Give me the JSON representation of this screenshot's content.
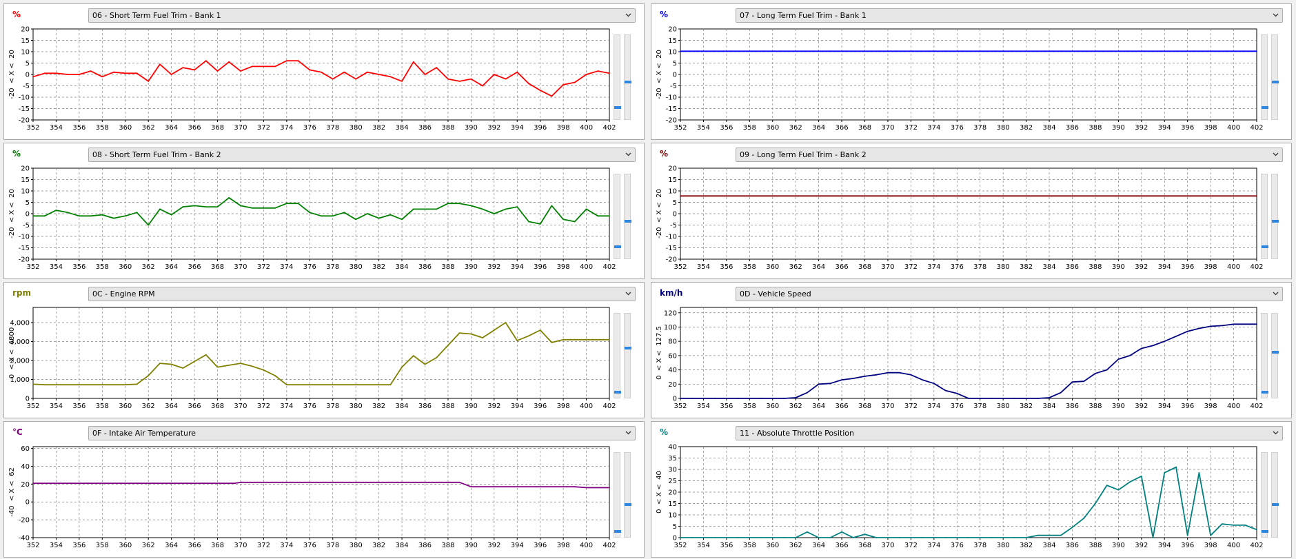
{
  "chart_data": [
    {
      "type": "line",
      "unit": "%",
      "title": "06 - Short Term Fuel Trim - Bank 1",
      "range_label": "-20  < X <  20",
      "color": "#ff0000",
      "ylim": [
        -20,
        20
      ],
      "yticks": [
        20,
        15,
        10,
        5,
        0,
        -5,
        -10,
        -15,
        -20
      ],
      "ytick_labels": [
        "20",
        "15",
        "10",
        "5",
        "0",
        "-5",
        "-10",
        "-15",
        "-20"
      ],
      "xlim": [
        352,
        402
      ],
      "xticks": [
        352,
        354,
        356,
        358,
        360,
        362,
        364,
        366,
        368,
        370,
        372,
        374,
        376,
        378,
        380,
        382,
        384,
        386,
        388,
        390,
        392,
        394,
        396,
        398,
        400,
        402
      ],
      "x": [
        352,
        353,
        354,
        355,
        356,
        357,
        358,
        359,
        360,
        361,
        362,
        363,
        364,
        365,
        366,
        367,
        368,
        369,
        370,
        371,
        372,
        373,
        374,
        375,
        376,
        377,
        378,
        379,
        380,
        381,
        382,
        383,
        384,
        385,
        386,
        387,
        388,
        389,
        390,
        391,
        392,
        393,
        394,
        395,
        396,
        397,
        398,
        399,
        400,
        401,
        402
      ],
      "y": [
        -1,
        0.5,
        0.5,
        0,
        0,
        1.5,
        -1,
        1,
        0.5,
        0.5,
        -3,
        4.5,
        0,
        3,
        2,
        6,
        1.5,
        5.5,
        1.5,
        3.5,
        3.5,
        3.5,
        6,
        6,
        2,
        1,
        -2,
        1,
        -2,
        1,
        0,
        -1,
        -3,
        5.5,
        0,
        3,
        -2,
        -3,
        -2,
        -5,
        0,
        -2,
        1,
        -4,
        -7,
        -9.5,
        -4.5,
        -3.5,
        0,
        1.5,
        0.5
      ],
      "scroll": [
        0.56,
        0.87
      ]
    },
    {
      "type": "line",
      "unit": "%",
      "title": "07 - Long Term Fuel Trim - Bank 1",
      "range_label": "-20  < X <  20",
      "color": "#0000ff",
      "ylim": [
        -20,
        20
      ],
      "yticks": [
        20,
        15,
        10,
        5,
        0,
        -5,
        -10,
        -15,
        -20
      ],
      "ytick_labels": [
        "20",
        "15",
        "10",
        "5",
        "0",
        "-5",
        "-10",
        "-15",
        "-20"
      ],
      "xlim": [
        352,
        402
      ],
      "xticks": [
        352,
        354,
        356,
        358,
        360,
        362,
        364,
        366,
        368,
        370,
        372,
        374,
        376,
        378,
        380,
        382,
        384,
        386,
        388,
        390,
        392,
        394,
        396,
        398,
        400,
        402
      ],
      "x": [
        352,
        402
      ],
      "y": [
        10.2,
        10.2
      ],
      "scroll": [
        0.56,
        0.87
      ]
    },
    {
      "type": "line",
      "unit": "%",
      "title": "08 - Short Term Fuel Trim - Bank 2",
      "range_label": "-20  < X <  20",
      "color": "#008000",
      "ylim": [
        -20,
        20
      ],
      "yticks": [
        20,
        15,
        10,
        5,
        0,
        -5,
        -10,
        -15,
        -20
      ],
      "ytick_labels": [
        "20",
        "15",
        "10",
        "5",
        "0",
        "-5",
        "-10",
        "-15",
        "-20"
      ],
      "xlim": [
        352,
        402
      ],
      "xticks": [
        352,
        354,
        356,
        358,
        360,
        362,
        364,
        366,
        368,
        370,
        372,
        374,
        376,
        378,
        380,
        382,
        384,
        386,
        388,
        390,
        392,
        394,
        396,
        398,
        400,
        402
      ],
      "x": [
        352,
        353,
        354,
        355,
        356,
        357,
        358,
        359,
        360,
        361,
        362,
        363,
        364,
        365,
        366,
        367,
        368,
        369,
        370,
        371,
        372,
        373,
        374,
        375,
        376,
        377,
        378,
        379,
        380,
        381,
        382,
        383,
        384,
        385,
        386,
        387,
        388,
        389,
        390,
        391,
        392,
        393,
        394,
        395,
        396,
        397,
        398,
        399,
        400,
        401,
        402
      ],
      "y": [
        -1,
        -1,
        1.5,
        0.5,
        -1,
        -1,
        -0.5,
        -2,
        -1,
        0.5,
        -5,
        2,
        -0.5,
        3,
        3.5,
        3,
        3,
        7,
        3.5,
        2.5,
        2.5,
        2.5,
        4.5,
        4.5,
        0.5,
        -1,
        -1,
        0.5,
        -2.5,
        0,
        -2,
        -0.5,
        -2.5,
        2,
        2,
        2,
        4.5,
        4.5,
        3.5,
        2,
        0,
        2,
        3,
        -3.5,
        -4.5,
        3.5,
        -2.5,
        -3.5,
        2,
        -1,
        -1
      ],
      "scroll": [
        0.56,
        0.87
      ]
    },
    {
      "type": "line",
      "unit": "%",
      "title": "09 - Long Term Fuel Trim - Bank 2",
      "range_label": "-20  < X <  20",
      "color": "#800000",
      "ylim": [
        -20,
        20
      ],
      "yticks": [
        20,
        15,
        10,
        5,
        0,
        -5,
        -10,
        -15,
        -20
      ],
      "ytick_labels": [
        "20",
        "15",
        "10",
        "5",
        "0",
        "-5",
        "-10",
        "-15",
        "-20"
      ],
      "xlim": [
        352,
        402
      ],
      "xticks": [
        352,
        354,
        356,
        358,
        360,
        362,
        364,
        366,
        368,
        370,
        372,
        374,
        376,
        378,
        380,
        382,
        384,
        386,
        388,
        390,
        392,
        394,
        396,
        398,
        400,
        402
      ],
      "x": [
        352,
        402
      ],
      "y": [
        7.8,
        7.8
      ],
      "scroll": [
        0.56,
        0.87
      ]
    },
    {
      "type": "line",
      "unit": "rpm",
      "title": "0C - Engine RPM",
      "range_label": "0  < X <  4800",
      "color": "#808000",
      "ylim": [
        0,
        4800
      ],
      "yticks": [
        4000,
        3000,
        2000,
        1000,
        0
      ],
      "ytick_labels": [
        "4,000",
        "3,000",
        "2,000",
        "1,000",
        "0"
      ],
      "xlim": [
        352,
        402
      ],
      "xticks": [
        352,
        354,
        356,
        358,
        360,
        362,
        364,
        366,
        368,
        370,
        372,
        374,
        376,
        378,
        380,
        382,
        384,
        386,
        388,
        390,
        392,
        394,
        396,
        398,
        400,
        402
      ],
      "x": [
        352,
        353,
        354,
        355,
        356,
        357,
        358,
        359,
        360,
        361,
        362,
        363,
        364,
        365,
        366,
        367,
        368,
        369,
        370,
        371,
        372,
        373,
        374,
        375,
        376,
        377,
        378,
        379,
        380,
        381,
        382,
        383,
        384,
        385,
        386,
        387,
        388,
        389,
        390,
        391,
        392,
        393,
        394,
        395,
        396,
        397,
        398,
        399,
        400,
        401,
        402
      ],
      "y": [
        750,
        720,
        720,
        720,
        720,
        720,
        720,
        720,
        720,
        750,
        1200,
        1850,
        1800,
        1600,
        1950,
        2300,
        1650,
        1750,
        1850,
        1700,
        1500,
        1200,
        720,
        720,
        720,
        720,
        720,
        720,
        720,
        720,
        720,
        720,
        1650,
        2250,
        1800,
        2150,
        2800,
        3450,
        3400,
        3200,
        3600,
        4000,
        3050,
        3300,
        3600,
        2950,
        3100,
        3100,
        3100,
        3100,
        3100
      ],
      "scroll": [
        0.41,
        0.95
      ]
    },
    {
      "type": "line",
      "unit": "km/h",
      "title": "0D - Vehicle Speed",
      "range_label": "0  < X <  127.5",
      "color": "#000080",
      "ylim": [
        0,
        127.5
      ],
      "yticks": [
        120,
        100,
        80,
        60,
        40,
        20,
        0
      ],
      "ytick_labels": [
        "120",
        "100",
        "80",
        "60",
        "40",
        "20",
        "0"
      ],
      "xlim": [
        352,
        402
      ],
      "xticks": [
        352,
        354,
        356,
        358,
        360,
        362,
        364,
        366,
        368,
        370,
        372,
        374,
        376,
        378,
        380,
        382,
        384,
        386,
        388,
        390,
        392,
        394,
        396,
        398,
        400,
        402
      ],
      "x": [
        352,
        353,
        354,
        355,
        356,
        357,
        358,
        359,
        360,
        361,
        362,
        363,
        364,
        365,
        366,
        367,
        368,
        369,
        370,
        371,
        372,
        373,
        374,
        375,
        376,
        377,
        378,
        379,
        380,
        381,
        382,
        383,
        384,
        385,
        386,
        387,
        388,
        389,
        390,
        391,
        392,
        393,
        394,
        395,
        396,
        397,
        398,
        399,
        400,
        401,
        402
      ],
      "y": [
        0,
        0,
        0,
        0,
        0,
        0,
        0,
        0,
        0,
        0,
        1,
        8,
        20,
        21,
        26,
        28,
        31,
        33,
        36,
        36,
        33,
        26,
        21,
        11,
        7,
        0,
        0,
        0,
        0,
        0,
        0,
        0,
        1,
        8,
        23,
        24,
        35,
        40,
        55,
        60,
        70,
        74,
        80,
        87,
        94,
        98,
        101,
        102,
        104,
        104,
        104
      ],
      "scroll": [
        0.46,
        0.95
      ]
    },
    {
      "type": "line",
      "unit": "°C",
      "title": "0F - Intake Air Temperature",
      "range_label": "-40  < X <  62",
      "color": "#800080",
      "ylim": [
        -40,
        62
      ],
      "yticks": [
        60,
        40,
        20,
        0,
        -20,
        -40
      ],
      "ytick_labels": [
        "60",
        "40",
        "20",
        "0",
        "-20",
        "-40"
      ],
      "xlim": [
        352,
        402
      ],
      "xticks": [
        352,
        354,
        356,
        358,
        360,
        362,
        364,
        366,
        368,
        370,
        372,
        374,
        376,
        378,
        380,
        382,
        384,
        386,
        388,
        390,
        392,
        394,
        396,
        398,
        400,
        402
      ],
      "x": [
        352,
        369.5,
        370,
        389,
        390,
        399,
        400,
        402
      ],
      "y": [
        21,
        21,
        22,
        22,
        17,
        17,
        16,
        16
      ],
      "scroll": [
        0.62,
        0.95
      ]
    },
    {
      "type": "line",
      "unit": "%",
      "title": "11 - Absolute Throttle Position",
      "range_label": "0  < X <  40",
      "color": "#008080",
      "ylim": [
        0,
        40
      ],
      "yticks": [
        40,
        35,
        30,
        25,
        20,
        15,
        10,
        5,
        0
      ],
      "ytick_labels": [
        "40",
        "35",
        "30",
        "25",
        "20",
        "15",
        "10",
        "5",
        "0"
      ],
      "xlim": [
        352,
        402
      ],
      "xticks": [
        352,
        354,
        356,
        358,
        360,
        362,
        364,
        366,
        368,
        370,
        372,
        374,
        376,
        378,
        380,
        382,
        384,
        386,
        388,
        390,
        392,
        394,
        396,
        398,
        400,
        402
      ],
      "x": [
        352,
        353,
        354,
        355,
        356,
        357,
        358,
        359,
        360,
        361,
        362,
        363,
        364,
        365,
        366,
        367,
        368,
        369,
        370,
        371,
        372,
        373,
        374,
        375,
        376,
        377,
        378,
        379,
        380,
        381,
        382,
        383,
        384,
        385,
        386,
        387,
        388,
        389,
        390,
        391,
        392,
        393,
        394,
        395,
        396,
        397,
        398,
        399,
        400,
        401,
        402
      ],
      "y": [
        0,
        0,
        0,
        0,
        0,
        0,
        0,
        0,
        0,
        0,
        0,
        2.5,
        0,
        0,
        2.5,
        0,
        1.5,
        0,
        0,
        0,
        0,
        0,
        0,
        0,
        0,
        0,
        0,
        0,
        0,
        0,
        0,
        1,
        1,
        1,
        4.5,
        8.5,
        15,
        23,
        21,
        24.5,
        27,
        0,
        28.5,
        31,
        1,
        28.5,
        1,
        6,
        5.5,
        5.5,
        3.5
      ],
      "scroll": [
        0.62,
        0.95
      ]
    }
  ]
}
